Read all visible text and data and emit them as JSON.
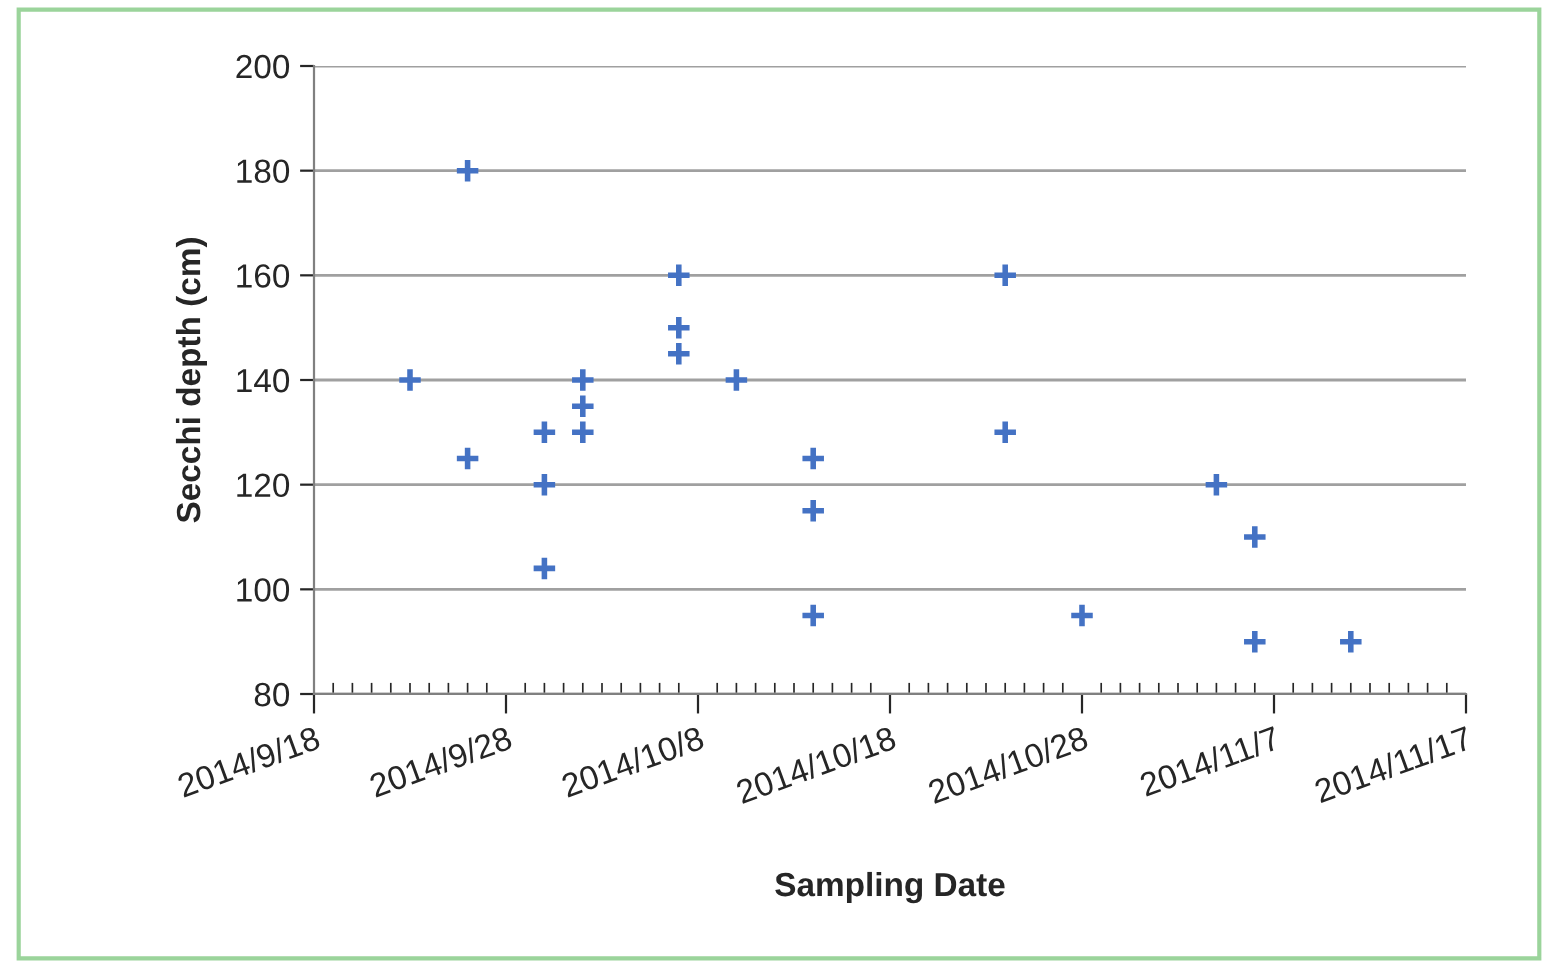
{
  "chart_data": {
    "type": "scatter",
    "xlabel": "Sampling Date",
    "ylabel": "Secchi depth (cm)",
    "x": [
      "2014-09-23",
      "2014-09-26",
      "2014-09-26",
      "2014-09-30",
      "2014-09-30",
      "2014-09-30",
      "2014-10-02",
      "2014-10-02",
      "2014-10-02",
      "2014-10-07",
      "2014-10-07",
      "2014-10-07",
      "2014-10-10",
      "2014-10-14",
      "2014-10-14",
      "2014-10-14",
      "2014-10-24",
      "2014-10-24",
      "2014-10-28",
      "2014-11-04",
      "2014-11-06",
      "2014-11-06",
      "2014-11-11"
    ],
    "series": [
      {
        "color": "#4472c4",
        "values": [
          140,
          180,
          125,
          130,
          120,
          104,
          140,
          135,
          130,
          160,
          150,
          145,
          140,
          125,
          115,
          95,
          160,
          130,
          95,
          120,
          110,
          90,
          90
        ]
      }
    ],
    "xlim": [
      "2014-09-18",
      "2014-11-17"
    ],
    "xticks": [
      {
        "value": "2014-09-18",
        "label": "2014/9/18"
      },
      {
        "value": "2014-09-28",
        "label": "2014/9/28"
      },
      {
        "value": "2014-10-08",
        "label": "2014/10/8"
      },
      {
        "value": "2014-10-18",
        "label": "2014/10/18"
      },
      {
        "value": "2014-10-28",
        "label": "2014/10/28"
      },
      {
        "value": "2014-11-07",
        "label": "2014/11/7"
      },
      {
        "value": "2014-11-17",
        "label": "2014/11/17"
      }
    ],
    "ylim": [
      80,
      200
    ],
    "yticks": [
      80,
      100,
      120,
      140,
      160,
      180,
      200
    ],
    "grid": "y",
    "marker": "cross"
  }
}
